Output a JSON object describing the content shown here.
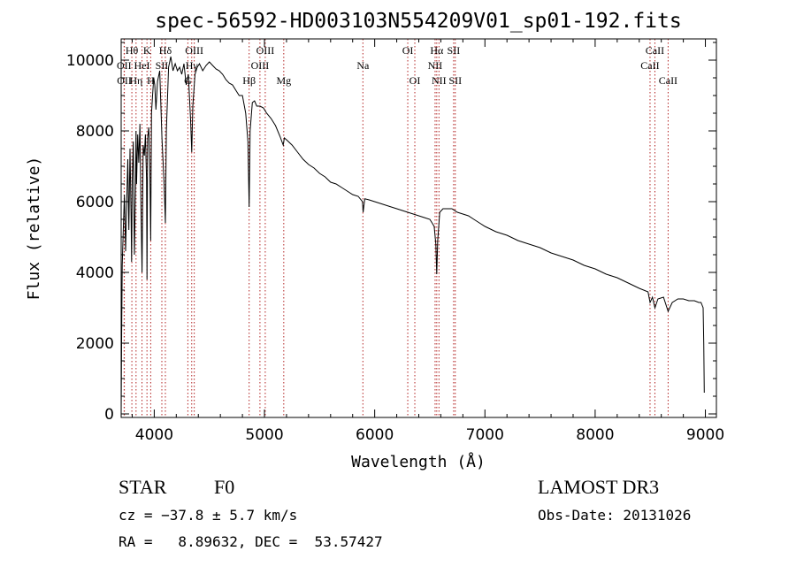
{
  "chart_data": {
    "type": "line",
    "title": "spec-56592-HD003103N554209V01_sp01-192.fits",
    "xlabel": "Wavelength (Å)",
    "ylabel": "Flux (relative)",
    "xlim": [
      3700,
      9100
    ],
    "ylim": [
      -100,
      10600
    ],
    "xticks": [
      4000,
      5000,
      6000,
      7000,
      8000,
      9000
    ],
    "yticks": [
      0,
      2000,
      4000,
      6000,
      8000,
      10000
    ],
    "grid": false,
    "series": [
      {
        "name": "spectrum",
        "x": [
          3700,
          3705,
          3710,
          3720,
          3730,
          3740,
          3750,
          3760,
          3770,
          3780,
          3790,
          3795,
          3800,
          3810,
          3820,
          3830,
          3835,
          3840,
          3850,
          3860,
          3870,
          3880,
          3889,
          3900,
          3910,
          3920,
          3930,
          3934,
          3940,
          3950,
          3960,
          3968,
          3975,
          3985,
          3995,
          4005,
          4015,
          4030,
          4050,
          4070,
          4090,
          4101,
          4110,
          4130,
          4150,
          4170,
          4190,
          4210,
          4230,
          4250,
          4270,
          4290,
          4310,
          4330,
          4340,
          4350,
          4370,
          4390,
          4410,
          4440,
          4470,
          4500,
          4530,
          4560,
          4590,
          4620,
          4650,
          4680,
          4710,
          4740,
          4770,
          4800,
          4830,
          4850,
          4861,
          4870,
          4890,
          4910,
          4930,
          4960,
          4990,
          5020,
          5060,
          5100,
          5140,
          5170,
          5180,
          5200,
          5250,
          5300,
          5350,
          5400,
          5450,
          5500,
          5550,
          5600,
          5650,
          5700,
          5750,
          5800,
          5850,
          5889,
          5895,
          5910,
          5950,
          6000,
          6050,
          6100,
          6150,
          6200,
          6250,
          6300,
          6350,
          6400,
          6450,
          6500,
          6520,
          6540,
          6555,
          6563,
          6572,
          6590,
          6620,
          6650,
          6700,
          6750,
          6800,
          6850,
          6900,
          6950,
          7000,
          7100,
          7200,
          7300,
          7400,
          7500,
          7600,
          7700,
          7800,
          7900,
          8000,
          8100,
          8200,
          8300,
          8400,
          8480,
          8498,
          8520,
          8542,
          8570,
          8620,
          8662,
          8700,
          8750,
          8800,
          8850,
          8900,
          8940,
          8960,
          8980,
          8985,
          8990
        ],
        "values": [
          0,
          2400,
          4200,
          5300,
          6200,
          4600,
          5900,
          7200,
          5200,
          7500,
          5600,
          4300,
          6600,
          7700,
          4500,
          6300,
          8000,
          6500,
          7900,
          7100,
          8200,
          5900,
          4000,
          7600,
          7300,
          7900,
          6600,
          3800,
          7800,
          8100,
          7000,
          4900,
          8500,
          9000,
          9500,
          9300,
          8600,
          9400,
          9700,
          7800,
          6500,
          5400,
          8000,
          9800,
          10100,
          9700,
          9900,
          9700,
          9800,
          9600,
          9900,
          9300,
          9600,
          8300,
          7400,
          8700,
          9600,
          9800,
          9900,
          9700,
          9850,
          9950,
          9850,
          9750,
          9700,
          9600,
          9450,
          9350,
          9300,
          9150,
          9000,
          9000,
          8500,
          7700,
          5850,
          8000,
          8800,
          8850,
          8700,
          8700,
          8650,
          8500,
          8350,
          8150,
          7850,
          7600,
          7800,
          7750,
          7600,
          7400,
          7200,
          7050,
          6950,
          6800,
          6700,
          6550,
          6500,
          6400,
          6300,
          6200,
          6150,
          6000,
          5700,
          6080,
          6050,
          6000,
          5950,
          5900,
          5850,
          5800,
          5750,
          5700,
          5650,
          5600,
          5550,
          5500,
          5400,
          5300,
          4800,
          3950,
          4900,
          5700,
          5800,
          5800,
          5800,
          5700,
          5650,
          5600,
          5500,
          5400,
          5300,
          5150,
          5050,
          4900,
          4800,
          4700,
          4550,
          4450,
          4350,
          4200,
          4100,
          3950,
          3850,
          3700,
          3550,
          3450,
          3150,
          3300,
          3000,
          3250,
          3300,
          2900,
          3150,
          3250,
          3250,
          3200,
          3200,
          3150,
          3150,
          3000,
          2000,
          600
        ]
      }
    ],
    "lines": [
      {
        "label": "Hθ",
        "x": 3797,
        "row": 0
      },
      {
        "label": "OII",
        "x": 3727,
        "row": 1
      },
      {
        "label": "OII",
        "x": 3729,
        "row": 2
      },
      {
        "label": "K",
        "x": 3934,
        "row": 0
      },
      {
        "label": "HeI",
        "x": 3889,
        "row": 1
      },
      {
        "label": "Hη",
        "x": 3835,
        "row": 2
      },
      {
        "label": "H",
        "x": 3968,
        "row": 2
      },
      {
        "label": "Hδ",
        "x": 4101,
        "row": 0
      },
      {
        "label": "SII",
        "x": 4069,
        "row": 1
      },
      {
        "label": "OIII",
        "x": 4363,
        "row": 0
      },
      {
        "label": "Hγ",
        "x": 4340,
        "row": 1
      },
      {
        "label": "G",
        "x": 4305,
        "row": 2
      },
      {
        "label": "Hβ",
        "x": 4861,
        "row": 2
      },
      {
        "label": "OIII",
        "x": 5007,
        "row": 0
      },
      {
        "label": "OIII",
        "x": 4959,
        "row": 1
      },
      {
        "label": "Mg",
        "x": 5175,
        "row": 2
      },
      {
        "label": "Na",
        "x": 5893,
        "row": 1
      },
      {
        "label": "OI",
        "x": 6300,
        "row": 0
      },
      {
        "label": "OI",
        "x": 6364,
        "row": 2
      },
      {
        "label": "Hα",
        "x": 6563,
        "row": 0
      },
      {
        "label": "NII",
        "x": 6548,
        "row": 1
      },
      {
        "label": "NII",
        "x": 6583,
        "row": 2
      },
      {
        "label": "SII",
        "x": 6716,
        "row": 0
      },
      {
        "label": "SII",
        "x": 6731,
        "row": 2
      },
      {
        "label": "CaII",
        "x": 8542,
        "row": 0
      },
      {
        "label": "CaII",
        "x": 8498,
        "row": 1
      },
      {
        "label": "CaII",
        "x": 8662,
        "row": 2
      }
    ]
  },
  "info": {
    "object_class": "STAR",
    "subclass": "F0",
    "survey": "LAMOST DR3",
    "cz": "cz = −37.8 ± 5.7 km/s",
    "obs_date": "Obs-Date: 20131026",
    "radec": "RA =   8.89632, DEC =  53.57427"
  }
}
